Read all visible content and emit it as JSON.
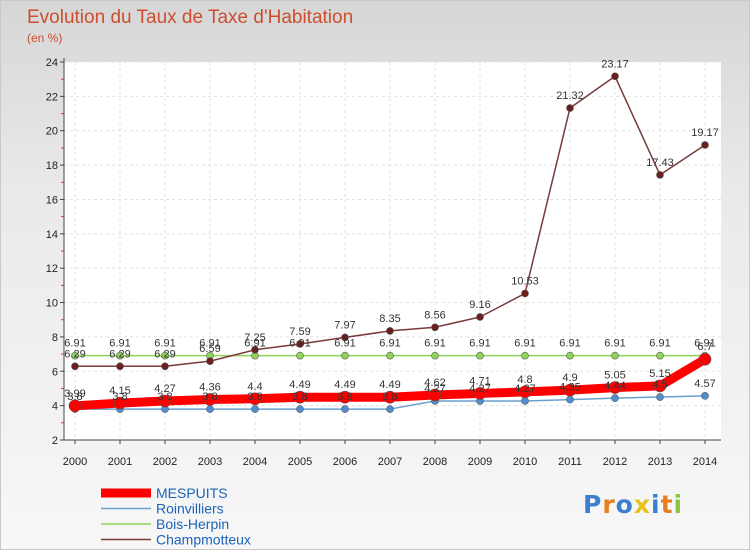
{
  "header": {
    "title": "Evolution du Taux de Taxe d'Habitation",
    "unit": "(en %)"
  },
  "logo": {
    "text": "Proxiti",
    "colors": [
      "#3a7fd0",
      "#e87e1e",
      "#3a7fd0",
      "#e8c21e",
      "#3a7fd0",
      "#e87e1e",
      "#8cc63f"
    ]
  },
  "chart_data": {
    "type": "line",
    "x": [
      "2000",
      "2001",
      "2002",
      "2003",
      "2004",
      "2005",
      "2006",
      "2007",
      "2008",
      "2009",
      "2010",
      "2011",
      "2012",
      "2013",
      "2014"
    ],
    "ylim": [
      2,
      24
    ],
    "yticks": [
      2,
      4,
      6,
      8,
      10,
      12,
      14,
      16,
      18,
      20,
      22,
      24
    ],
    "grid": true,
    "legend": "bottom-left",
    "series": [
      {
        "name": "MESPUITS",
        "color": "#ff0000",
        "marker": "#ff0000",
        "values": [
          3.99,
          4.15,
          4.27,
          4.36,
          4.4,
          4.49,
          4.49,
          4.49,
          4.62,
          4.71,
          4.8,
          4.9,
          5.05,
          5.15,
          6.7
        ],
        "labels": [
          "3.99",
          "4.15",
          "4.27",
          "4.36",
          "4.4",
          "4.49",
          "4.49",
          "4.49",
          "4.62",
          "4.71",
          "4.8",
          "4.9",
          "5.05",
          "5.15",
          "6.7"
        ]
      },
      {
        "name": "Roinvilliers",
        "color": "#6a9fcf",
        "marker": "#4f8fd0",
        "values": [
          3.8,
          3.8,
          3.8,
          3.8,
          3.8,
          3.8,
          3.8,
          3.8,
          4.27,
          4.27,
          4.27,
          4.35,
          4.44,
          4.5,
          4.57
        ],
        "labels": [
          "3.8",
          "3.8",
          "3.8",
          "3.8",
          "3.8",
          "3.8",
          "3.8",
          "3.8",
          "4.27",
          "4.27",
          "4.27",
          "4.35",
          "4.44",
          "4.5",
          "4.57"
        ]
      },
      {
        "name": "Bois-Herpin",
        "color": "#8fd35a",
        "marker": "#8fd35a",
        "values": [
          6.91,
          6.91,
          6.91,
          6.91,
          6.91,
          6.91,
          6.91,
          6.91,
          6.91,
          6.91,
          6.91,
          6.91,
          6.91,
          6.91,
          6.91
        ],
        "labels": [
          "6.91",
          "6.91",
          "6.91",
          "6.91",
          "6.91",
          "6.91",
          "6.91",
          "6.91",
          "6.91",
          "6.91",
          "6.91",
          "6.91",
          "6.91",
          "6.91",
          "6.91"
        ]
      },
      {
        "name": "Champmotteux",
        "color": "#7a3a3a",
        "marker": "#6b1f1f",
        "values": [
          6.29,
          6.29,
          6.29,
          6.59,
          7.25,
          7.59,
          7.97,
          8.35,
          8.56,
          9.16,
          10.53,
          21.32,
          23.17,
          17.43,
          19.17
        ],
        "labels": [
          "6.29",
          "6.29",
          "6.29",
          "6.59",
          "7.25",
          "7.59",
          "7.97",
          "8.35",
          "8.56",
          "9.16",
          "10.53",
          "21.32",
          "23.17",
          "17.43",
          "19.17"
        ]
      }
    ]
  }
}
